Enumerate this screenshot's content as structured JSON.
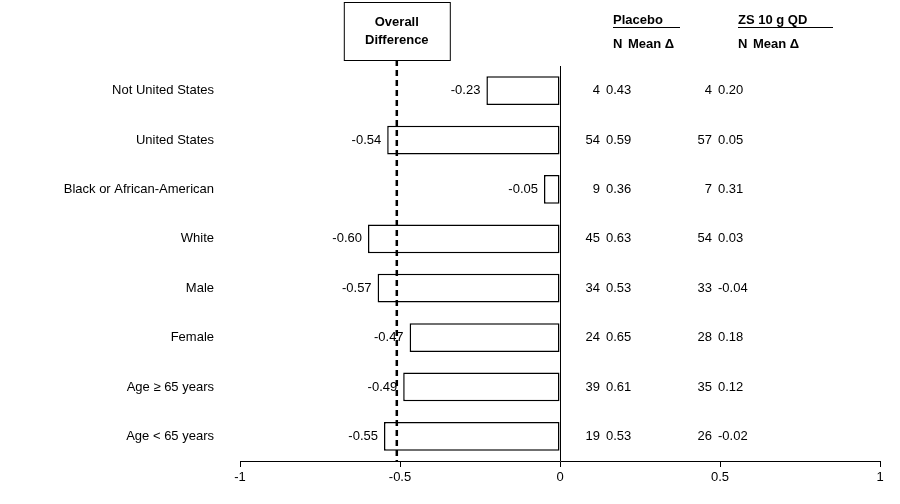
{
  "chart_data": {
    "type": "bar",
    "orientation": "horizontal",
    "categories": [
      "Not United States",
      "United States",
      "Black or African-American",
      "White",
      "Male",
      "Female",
      "Age ≥ 65 years",
      "Age < 65 years"
    ],
    "values": [
      -0.23,
      -0.54,
      -0.05,
      -0.6,
      -0.57,
      -0.47,
      -0.49,
      -0.55
    ],
    "value_labels": [
      "-0.23",
      "-0.54",
      "-0.05",
      "-0.60",
      "-0.57",
      "-0.47",
      "-0.49",
      "-0.55"
    ],
    "data_labels": true,
    "color": "#ffffff",
    "xlim": [
      -1,
      1
    ],
    "xticks": [
      -1,
      -0.5,
      0,
      0.5,
      1
    ],
    "grid": false,
    "annotations": [
      {
        "text": "Overall Difference",
        "x": -0.51,
        "line_style": "dashed"
      }
    ],
    "table": {
      "groups": [
        "Placebo",
        "ZS 10 g QD"
      ],
      "columns": [
        "N",
        "Mean Δ",
        "N",
        "Mean Δ"
      ],
      "rows": [
        [
          "4",
          "0.43",
          "4",
          "0.20"
        ],
        [
          "54",
          "0.59",
          "57",
          "0.05"
        ],
        [
          "9",
          "0.36",
          "7",
          "0.31"
        ],
        [
          "45",
          "0.63",
          "54",
          "0.03"
        ],
        [
          "34",
          "0.53",
          "33",
          "-0.04"
        ],
        [
          "24",
          "0.65",
          "28",
          "0.18"
        ],
        [
          "39",
          "0.61",
          "35",
          "0.12"
        ],
        [
          "19",
          "0.53",
          "26",
          "-0.02"
        ]
      ]
    }
  }
}
